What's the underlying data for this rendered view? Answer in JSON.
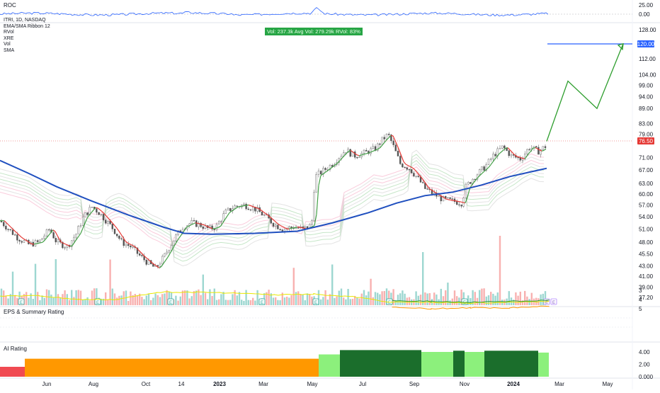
{
  "panels": {
    "roc_label": "ROC",
    "main_indicators": [
      "ITRI, 1D, NASDAQ",
      "EMA/SMA Ribbon 12",
      "RVol",
      "XRE",
      "Vol",
      "SMA"
    ],
    "vol_badge": "Vol: 237.3k   Avg Vol: 279.29k   RVol: 83%",
    "eps_label": "EPS & Summary Rating",
    "ai_label": "AI Rating"
  },
  "colors": {
    "up": "#26a69a",
    "down": "#ef5350",
    "sma": "#1f4fbf",
    "projection": "#2e9e2e",
    "target": "#2962ff",
    "price_badge": "#e53935",
    "ai_red": "#f04a52",
    "ai_orange": "#ff9800",
    "ai_dark_green": "#1b6e2c",
    "ai_light_green": "#8cf07c"
  },
  "chart_data": [
    {
      "panel": "ROC",
      "type": "line",
      "ylim": [
        -5,
        30
      ],
      "y_ticks": [
        25.0,
        0.0
      ],
      "y_tick_labels": [
        "25.00",
        "0.00"
      ],
      "note": "rate of change oscillating mostly between -3 and 8, spike near early May 2023"
    },
    {
      "panel": "price",
      "type": "candlestick",
      "ylim": [
        35,
        130
      ],
      "y_scale": "log",
      "y_ticks": [
        128,
        120,
        112,
        104,
        99,
        94,
        89,
        83,
        79,
        76.5,
        71,
        67,
        63,
        60,
        57,
        54,
        51,
        48,
        45.5,
        43,
        41,
        39,
        37.2
      ],
      "y_tick_labels": [
        "128.00",
        "120.00",
        "112.00",
        "104.00",
        "99.00",
        "94.00",
        "89.00",
        "83.00",
        "79.00",
        "76.50",
        "71.00",
        "67.00",
        "63.00",
        "60.00",
        "57.00",
        "54.00",
        "51.00",
        "48.00",
        "45.50",
        "43.00",
        "41.00",
        "39.00",
        "37.20"
      ],
      "last_price": "76.50",
      "target_price": "120.00",
      "x_tick_labels": [
        "Jun",
        "Aug",
        "Oct",
        "14",
        "2023",
        "Mar",
        "May",
        "Jul",
        "Sep",
        "Nov",
        "2024",
        "Mar",
        "May"
      ],
      "price_path": [
        [
          0,
          53
        ],
        [
          12,
          51
        ],
        [
          25,
          49
        ],
        [
          40,
          47.5
        ],
        [
          55,
          48
        ],
        [
          70,
          51
        ],
        [
          80,
          48
        ],
        [
          95,
          47
        ],
        [
          108,
          50
        ],
        [
          118,
          54
        ],
        [
          130,
          56.5
        ],
        [
          140,
          55
        ],
        [
          150,
          53
        ],
        [
          160,
          51
        ],
        [
          172,
          48
        ],
        [
          185,
          47
        ],
        [
          198,
          45
        ],
        [
          210,
          43.5
        ],
        [
          220,
          42.5
        ],
        [
          232,
          45
        ],
        [
          245,
          48.5
        ],
        [
          258,
          51.5
        ],
        [
          270,
          52.5
        ],
        [
          282,
          52
        ],
        [
          295,
          51
        ],
        [
          305,
          51.5
        ],
        [
          318,
          55
        ],
        [
          330,
          56.5
        ],
        [
          345,
          57
        ],
        [
          360,
          56
        ],
        [
          375,
          54
        ],
        [
          388,
          52
        ],
        [
          400,
          51
        ],
        [
          415,
          51.5
        ],
        [
          428,
          51
        ],
        [
          440,
          52
        ],
        [
          445,
          65
        ],
        [
          455,
          66.5
        ],
        [
          470,
          69
        ],
        [
          488,
          73.5
        ],
        [
          500,
          71.5
        ],
        [
          515,
          72.5
        ],
        [
          530,
          74
        ],
        [
          540,
          77
        ],
        [
          548,
          79
        ],
        [
          555,
          75
        ],
        [
          565,
          69
        ],
        [
          578,
          67.5
        ],
        [
          590,
          64.5
        ],
        [
          600,
          61.5
        ],
        [
          612,
          60
        ],
        [
          625,
          58.5
        ],
        [
          640,
          58
        ],
        [
          652,
          57.5
        ],
        [
          658,
          62
        ],
        [
          670,
          65
        ],
        [
          685,
          68
        ],
        [
          698,
          72
        ],
        [
          710,
          74.5
        ],
        [
          722,
          71.5
        ],
        [
          735,
          70.5
        ],
        [
          748,
          74.5
        ],
        [
          760,
          73
        ],
        [
          772,
          75
        ]
      ],
      "sma_path": [
        [
          0,
          70
        ],
        [
          40,
          66
        ],
        [
          80,
          62
        ],
        [
          130,
          58
        ],
        [
          180,
          54.5
        ],
        [
          230,
          51.5
        ],
        [
          260,
          50
        ],
        [
          300,
          49.8
        ],
        [
          360,
          50
        ],
        [
          420,
          50.5
        ],
        [
          470,
          52.5
        ],
        [
          520,
          55
        ],
        [
          560,
          57.5
        ],
        [
          600,
          59.5
        ],
        [
          640,
          60.5
        ],
        [
          680,
          62.5
        ],
        [
          720,
          65
        ],
        [
          772,
          67.5
        ]
      ],
      "projection_path": [
        [
          772,
          76.5
        ],
        [
          802,
          101
        ],
        [
          843,
          89
        ],
        [
          880,
          120
        ]
      ],
      "volume_ylim": [
        0,
        100
      ],
      "volume_note": "red/green volume histogram at bottom of price pane with taller spikes near Mar 2023, Nov 2023, Feb 2024"
    },
    {
      "panel": "EPS & Summary Rating",
      "type": "line",
      "ylim": [
        2.5,
        5.5
      ],
      "y_ticks": [
        5,
        4,
        3
      ],
      "y_tick_labels": [
        "5",
        "4",
        "3"
      ],
      "series": [
        {
          "color": "#e8e800",
          "values": [
            3.6,
            3.6,
            4.0,
            4.0,
            3.2,
            3.2,
            3.3,
            3.5,
            3.4,
            3.7,
            4.3,
            4.3,
            4.4,
            4.3,
            4.2
          ]
        },
        {
          "color": "#ff9800",
          "values": [
            null,
            null,
            null,
            null,
            null,
            null,
            null,
            null,
            null,
            null,
            4.8,
            5.0,
            4.9,
            4.9,
            4.7
          ]
        },
        {
          "color": "#2e9e2e",
          "values": [
            null,
            null,
            null,
            null,
            null,
            null,
            null,
            null,
            null,
            null,
            4.1,
            4.2,
            4.3,
            4.2,
            4.1
          ]
        }
      ]
    },
    {
      "panel": "AI Rating",
      "type": "area",
      "ylim": [
        0,
        5
      ],
      "y_ticks": [
        4.0,
        2.0,
        0.0
      ],
      "y_tick_labels": [
        "4.00",
        "2.00",
        "0.000"
      ],
      "segments": [
        {
          "color": "#f04a52",
          "value": 1.6
        },
        {
          "color": "#ff9800",
          "value": 2.9
        },
        {
          "color": "#8cf07c",
          "value": 3.6
        },
        {
          "color": "#1b6e2c",
          "value": 4.3
        },
        {
          "color": "#8cf07c",
          "value": 4.0
        },
        {
          "color": "#1b6e2c",
          "value": 4.2
        },
        {
          "color": "#8cf07c",
          "value": 4.0
        },
        {
          "color": "#1b6e2c",
          "value": 4.2
        },
        {
          "color": "#8cf07c",
          "value": 3.9
        }
      ]
    }
  ]
}
